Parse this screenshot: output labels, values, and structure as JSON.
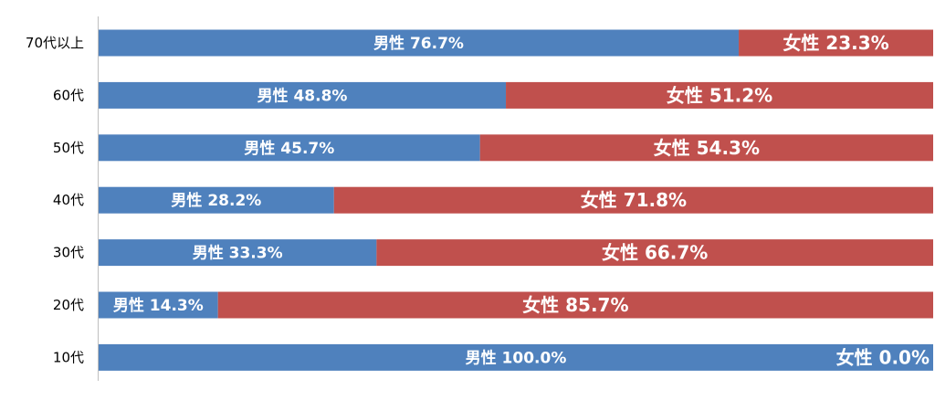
{
  "chart_data": {
    "type": "bar",
    "orientation": "horizontal",
    "stacked": "percent",
    "categories": [
      "70代以上",
      "60代",
      "50代",
      "40代",
      "30代",
      "20代",
      "10代"
    ],
    "series": [
      {
        "name": "男性",
        "values": [
          76.7,
          48.8,
          45.7,
          28.2,
          33.3,
          14.3,
          100.0
        ],
        "color": "#4f81bd"
      },
      {
        "name": "女性",
        "values": [
          23.3,
          51.2,
          54.3,
          71.8,
          66.7,
          85.7,
          0.0
        ],
        "color": "#c0504d"
      }
    ],
    "data_labels": {
      "70代以上": {
        "male": "男性 76.7%",
        "female": "女性 23.3%"
      },
      "60代": {
        "male": "男性 48.8%",
        "female": "女性 51.2%"
      },
      "50代": {
        "male": "男性 45.7%",
        "female": "女性 54.3%"
      },
      "40代": {
        "male": "男性 28.2%",
        "female": "女性 71.8%"
      },
      "30代": {
        "male": "男性 33.3%",
        "female": "女性 66.7%"
      },
      "20代": {
        "male": "男性 14.3%",
        "female": "女性 85.7%"
      },
      "10代": {
        "male": "男性 100.0%",
        "female": "女性 0.0%"
      }
    },
    "xlim": [
      0,
      100
    ],
    "grid": false,
    "legend": "none",
    "title": "",
    "xlabel": "",
    "ylabel": ""
  }
}
